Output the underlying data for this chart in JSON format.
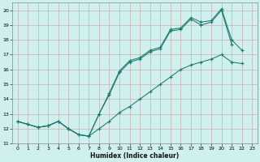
{
  "xlabel": "Humidex (Indice chaleur)",
  "background_color": "#cff0ee",
  "grid_color": "#c8b0b0",
  "line_color": "#1a7a6e",
  "x": [
    0,
    1,
    2,
    3,
    4,
    5,
    6,
    7,
    8,
    9,
    10,
    11,
    12,
    13,
    14,
    15,
    16,
    17,
    18,
    19,
    20,
    21,
    22,
    23
  ],
  "upper": [
    12.5,
    12.3,
    12.1,
    12.2,
    12.5,
    12.0,
    11.6,
    11.5,
    13.0,
    14.4,
    15.9,
    16.6,
    16.8,
    17.3,
    17.5,
    18.7,
    18.8,
    19.5,
    19.2,
    19.3,
    20.1,
    18.0,
    17.3,
    null
  ],
  "mid": [
    12.5,
    12.3,
    12.1,
    12.2,
    12.5,
    12.0,
    11.6,
    11.5,
    13.0,
    14.3,
    15.8,
    16.5,
    16.7,
    17.2,
    17.4,
    18.6,
    18.7,
    19.4,
    19.0,
    19.2,
    20.0,
    17.7,
    null,
    null
  ],
  "lower": [
    12.5,
    12.3,
    12.1,
    12.2,
    12.5,
    12.0,
    11.6,
    11.5,
    12.0,
    12.5,
    13.1,
    13.5,
    14.0,
    14.5,
    15.0,
    15.5,
    16.0,
    16.3,
    16.5,
    16.7,
    17.0,
    16.5,
    16.4,
    null
  ],
  "ylim": [
    11,
    20.5
  ],
  "xlim": [
    -0.5,
    23.5
  ],
  "yticks": [
    11,
    12,
    13,
    14,
    15,
    16,
    17,
    18,
    19,
    20
  ],
  "xticks": [
    0,
    1,
    2,
    3,
    4,
    5,
    6,
    7,
    8,
    9,
    10,
    11,
    12,
    13,
    14,
    15,
    16,
    17,
    18,
    19,
    20,
    21,
    22,
    23
  ]
}
